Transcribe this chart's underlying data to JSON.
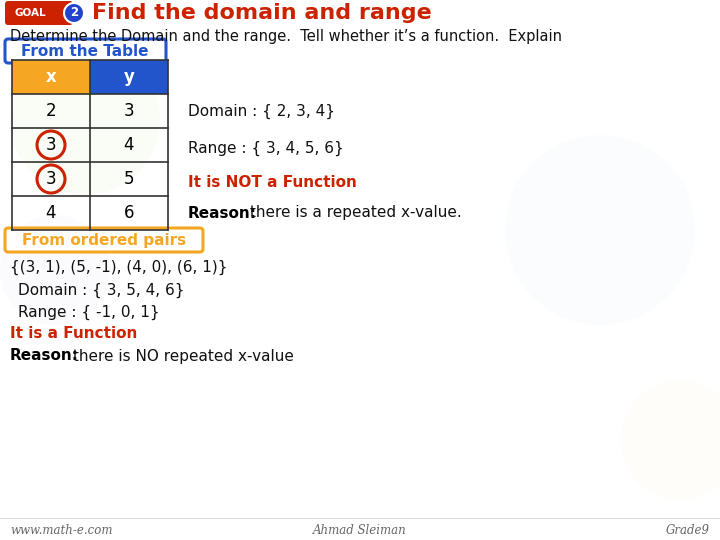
{
  "title": "Find the domain and range",
  "subtitle": "Determine the Domain and the range.  Tell whether it’s a function.  Explain",
  "goal_text": "GOAL",
  "goal_number": "2",
  "section1_label": "From the Table",
  "table_headers": [
    "x",
    "y"
  ],
  "table_data": [
    [
      2,
      3
    ],
    [
      3,
      4
    ],
    [
      3,
      5
    ],
    [
      4,
      6
    ]
  ],
  "table_domain_text": "Domain : { 2, 3, 4}",
  "table_range_text": "Range : { 3, 4, 5, 6}",
  "table_function_text": "It is NOT a Function",
  "table_reason_bold": "Reason:",
  "table_reason_rest": " there is a repeated x-value.",
  "section2_label": "From ordered pairs",
  "pairs_text": "{(3, 1), (5, -1), (4, 0), (6, 1)}",
  "pairs_domain_text": "Domain : { 3, 5, 4, 6}",
  "pairs_range_text": "Range : { -1, 0, 1}",
  "pairs_function_text": "It is a Function",
  "pairs_reason_bold": "Reason:",
  "pairs_reason_rest": " there is NO repeated x-value",
  "footer_left": "www.math-e.com",
  "footer_center": "Ahmad Sleiman",
  "footer_right": "Grade9",
  "bg_color": "#ffffff",
  "title_color": "#cc2200",
  "goal_bg": "#cc2200",
  "goal_number_bg": "#2244cc",
  "header_x_color": "#f5a623",
  "header_y_color": "#2255cc",
  "section1_border_color": "#2255cc",
  "section1_text_color": "#2255cc",
  "section2_border_color": "#f5a623",
  "section2_text_color": "#f5a623",
  "not_function_color": "#cc2200",
  "is_function_color": "#cc2200",
  "circle_color": "#cc2200",
  "body_text_color": "#111111",
  "reason_bold_color": "#000000",
  "footer_color": "#666666",
  "table_line_color": "#333333"
}
